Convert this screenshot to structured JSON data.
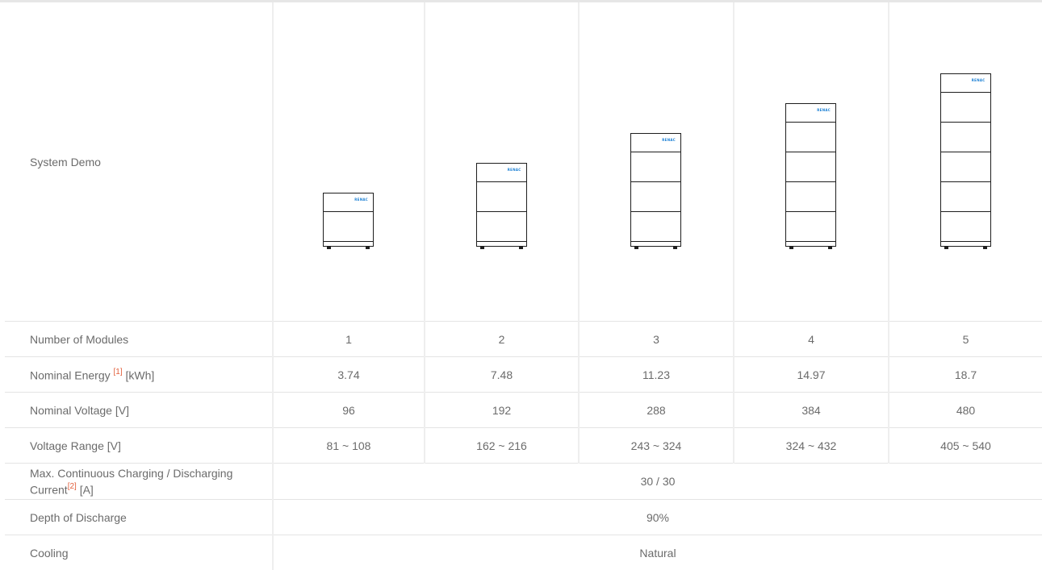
{
  "labels": {
    "system_demo": "System Demo",
    "modules": "Number of Modules",
    "energy": "Nominal Energy",
    "energy_unit": "[kWh]",
    "voltage": "Nominal Voltage [V]",
    "range": "Voltage Range [V]",
    "current": "Max. Continuous Charging / Discharging Current",
    "current_unit": "[A]",
    "dod": "Depth of Discharge",
    "cooling": "Cooling"
  },
  "notes": {
    "n1": "[1]",
    "n2": "[2]"
  },
  "brand_text": "RENAC",
  "modules": [
    "1",
    "2",
    "3",
    "4",
    "5"
  ],
  "energy": [
    "3.74",
    "7.48",
    "11.23",
    "14.97",
    "18.7"
  ],
  "voltage": [
    "96",
    "192",
    "288",
    "384",
    "480"
  ],
  "range": [
    "81 ~ 108",
    "162 ~ 216",
    "243 ~ 324",
    "324 ~ 432",
    "405 ~ 540"
  ],
  "current": "30 / 30",
  "dod": "90%",
  "cooling": "Natural",
  "colors": {
    "brand": "#1a7fd4",
    "note": "#e2603d",
    "line": "#1e1e1e",
    "border": "#eeeeee"
  }
}
